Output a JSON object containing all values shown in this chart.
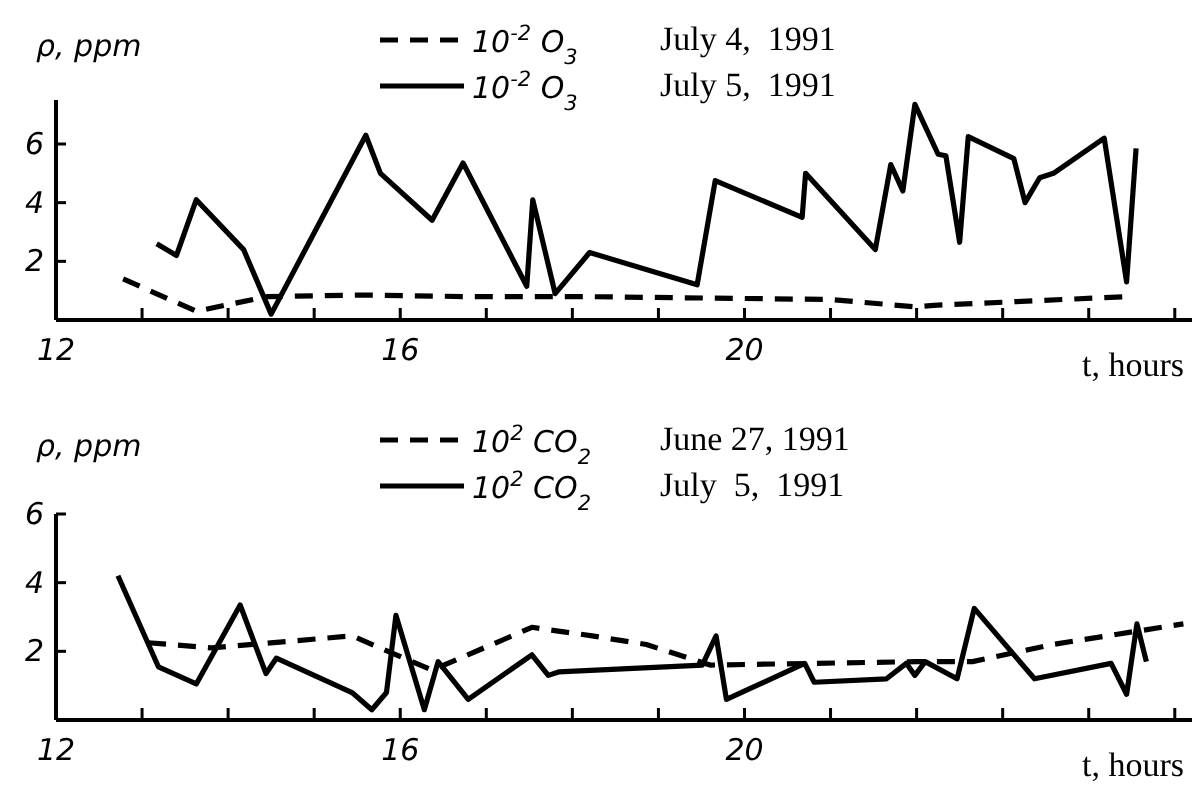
{
  "chart_data": [
    {
      "type": "line",
      "xlabel": "t, hours",
      "ylabel": "ρ, ppm",
      "xlim": [
        12,
        25.2
      ],
      "ylim": [
        0,
        7.5
      ],
      "xticks": [
        12,
        {
          "value": 13,
          "label": null
        },
        {
          "value": 14,
          "label": null
        },
        {
          "value": 15,
          "label": null
        },
        16,
        {
          "value": 17,
          "label": null
        },
        {
          "value": 18,
          "label": null
        },
        {
          "value": 19,
          "label": null
        },
        20,
        {
          "value": 21,
          "label": null
        },
        {
          "value": 22,
          "label": null
        },
        {
          "value": 23,
          "label": null
        },
        {
          "value": 24,
          "label": null
        },
        {
          "value": 25,
          "label": null
        }
      ],
      "yticks": [
        2,
        4,
        6
      ],
      "grid": false,
      "legend": "top",
      "marker": "none",
      "annotations": [
        "July 4,  1991",
        "July 5,  1991"
      ],
      "series": [
        {
          "name": "10$^{-2}$ O$_{3}$",
          "color": "#000000",
          "line_style": "dashed",
          "x": [
            12.78,
            13.63,
            14.46,
            15.58,
            16.73,
            18.07,
            20.99,
            21.98,
            22.2,
            24.46
          ],
          "values": [
            1.4,
            0.3,
            0.8,
            0.85,
            0.8,
            0.8,
            0.7,
            0.45,
            0.5,
            0.8
          ]
        },
        {
          "name": "10$^{-2}$ O$_{3}$",
          "color": "#000000",
          "line_style": "solid",
          "x": [
            13.17,
            13.4,
            13.63,
            14.18,
            14.5,
            15.6,
            15.77,
            16.37,
            16.73,
            17.47,
            17.54,
            17.8,
            18.2,
            19.45,
            19.66,
            20.67,
            20.71,
            21.52,
            21.7,
            21.84,
            21.98,
            22.25,
            22.34,
            22.5,
            22.6,
            23.13,
            23.26,
            23.43,
            23.59,
            24.18,
            24.44,
            24.55
          ],
          "values": [
            2.6,
            2.2,
            4.1,
            2.4,
            0.2,
            6.3,
            5.0,
            3.4,
            5.35,
            1.15,
            4.1,
            0.9,
            2.3,
            1.2,
            4.75,
            3.5,
            5.0,
            2.4,
            5.3,
            4.4,
            7.35,
            5.65,
            5.6,
            2.65,
            6.25,
            5.5,
            4.0,
            4.85,
            5.0,
            6.2,
            1.3,
            5.85
          ]
        }
      ]
    },
    {
      "type": "line",
      "xlabel": "t, hours",
      "ylabel": "ρ, ppm",
      "xlim": [
        12,
        25.2
      ],
      "ylim": [
        0,
        6
      ],
      "xticks": [
        12,
        {
          "value": 13,
          "label": null
        },
        {
          "value": 14,
          "label": null
        },
        {
          "value": 15,
          "label": null
        },
        16,
        {
          "value": 17,
          "label": null
        },
        {
          "value": 18,
          "label": null
        },
        {
          "value": 19,
          "label": null
        },
        20,
        {
          "value": 21,
          "label": null
        },
        {
          "value": 22,
          "label": null
        },
        {
          "value": 23,
          "label": null
        },
        {
          "value": 24,
          "label": null
        },
        {
          "value": 25,
          "label": null
        }
      ],
      "yticks": [
        2,
        4,
        6
      ],
      "grid": false,
      "legend": "top",
      "marker": "none",
      "annotations": [
        "June 27, 1991",
        "July  5,  1991"
      ],
      "series": [
        {
          "name": "10$^{2}$ CO$_{2}$",
          "color": "#000000",
          "line_style": "dashed",
          "x": [
            13.07,
            13.81,
            15.44,
            16.37,
            17.53,
            18.23,
            18.86,
            19.6,
            22.0,
            22.65,
            23.58,
            25.1
          ],
          "values": [
            2.25,
            2.1,
            2.45,
            1.45,
            2.7,
            2.45,
            2.2,
            1.6,
            1.7,
            1.7,
            2.2,
            2.8
          ]
        },
        {
          "name": "10$^{2}$ CO$_{2}$",
          "color": "#000000",
          "line_style": "solid",
          "x": [
            12.72,
            13.19,
            13.63,
            14.14,
            14.44,
            14.56,
            15.44,
            15.67,
            15.84,
            15.95,
            16.28,
            16.44,
            16.79,
            17.53,
            17.72,
            17.84,
            19.51,
            19.67,
            19.79,
            20.7,
            20.81,
            21.65,
            21.88,
            21.98,
            22.1,
            22.47,
            22.67,
            23.37,
            24.26,
            24.44,
            24.56,
            24.67
          ],
          "values": [
            4.2,
            1.55,
            1.05,
            3.35,
            1.35,
            1.8,
            0.8,
            0.3,
            0.8,
            3.05,
            0.3,
            1.7,
            0.6,
            1.9,
            1.3,
            1.4,
            1.6,
            2.45,
            0.6,
            1.65,
            1.1,
            1.2,
            1.65,
            1.3,
            1.7,
            1.2,
            3.25,
            1.2,
            1.65,
            0.75,
            2.8,
            1.7
          ]
        }
      ]
    }
  ]
}
